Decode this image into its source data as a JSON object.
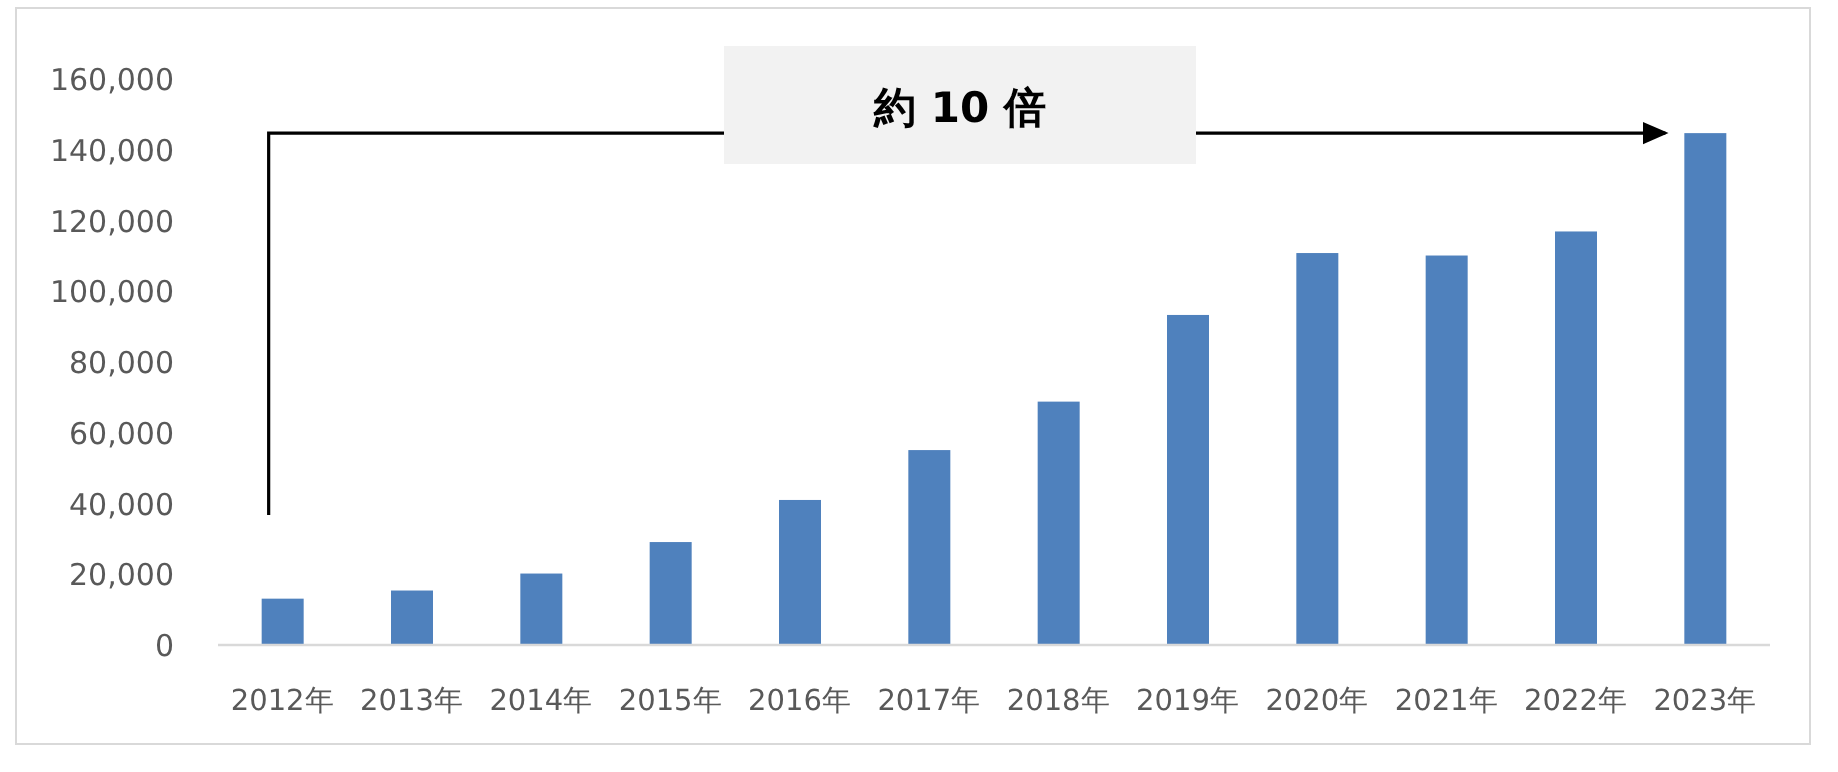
{
  "chart_data": {
    "type": "bar",
    "categories": [
      "2012年",
      "2013年",
      "2014年",
      "2015年",
      "2016年",
      "2017年",
      "2018年",
      "2019年",
      "2020年",
      "2021年",
      "2022年",
      "2023年"
    ],
    "values": [
      13100,
      15400,
      20200,
      29100,
      41000,
      55100,
      68800,
      93300,
      110800,
      110100,
      116900,
      144700
    ],
    "color": "#4f81bd",
    "ylim": [
      0,
      160000
    ],
    "yticks": [
      {
        "value": 0,
        "label": "0"
      },
      {
        "value": 20000,
        "label": "20,000"
      },
      {
        "value": 40000,
        "label": "40,000"
      },
      {
        "value": 60000,
        "label": "60,000"
      },
      {
        "value": 80000,
        "label": "80,000"
      },
      {
        "value": 100000,
        "label": "100,000"
      },
      {
        "value": 120000,
        "label": "120,000"
      },
      {
        "value": 140000,
        "label": "140,000"
      },
      {
        "value": 160000,
        "label": "160,000"
      }
    ],
    "annotations": [
      "約 10 倍"
    ]
  }
}
